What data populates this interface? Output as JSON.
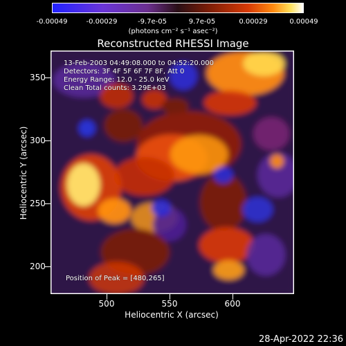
{
  "colorbar": {
    "tick_labels": [
      "-0.00049",
      "-0.00029",
      "-9.7e-05",
      "9.7e-05",
      "0.00029",
      "0.00049"
    ],
    "unit_label": "(photons cm⁻² s⁻¹ asec⁻²)"
  },
  "image": {
    "title": "Reconstructed RHESSI Image",
    "info_lines": [
      "13-Feb-2003 04:49:08.000 to 04:52:20.000",
      "Detectors: 3F 4F 5F 6F 7F 8F, Att 0",
      "Energy Range: 12.0 - 25.0 keV",
      "Clean    Total counts: 3.29E+03"
    ],
    "peak_text": "Position of Peak = [480,265]",
    "colormap_colors": [
      "#2222ff",
      "#6a35d8",
      "#6b2f8f",
      "#2a0f16",
      "#7a1d06",
      "#d83a05",
      "#ff8a10",
      "#ffe15a",
      "#ffffff"
    ]
  },
  "axes": {
    "xlabel": "Heliocentric X (arcsec)",
    "ylabel": "Heliocentric Y (arcsec)",
    "xticks": [
      "500",
      "550",
      "600"
    ],
    "yticks": [
      "350",
      "300",
      "250",
      "200"
    ]
  },
  "footer": {
    "timestamp": "28-Apr-2022 22:36"
  }
}
